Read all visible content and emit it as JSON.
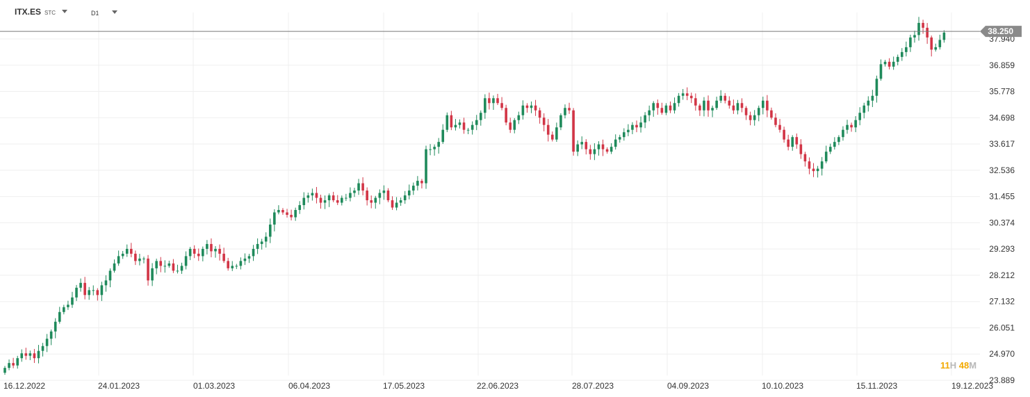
{
  "toolbar": {
    "symbol": "ITX.ES",
    "symbol_suffix": "STC",
    "timeframe": "D1"
  },
  "countdown": {
    "hours": "11",
    "hours_unit": "H",
    "minutes": "48",
    "minutes_unit": "M"
  },
  "colors": {
    "up": "#1f8a5b",
    "down": "#d23546",
    "grid": "#efefef",
    "price_line": "#777777",
    "price_tag_bg": "#8a8a8a",
    "axis_text": "#333333",
    "countdown_num": "#f2a900",
    "countdown_unit": "#b8b8b8"
  },
  "chart_data": {
    "type": "candlestick",
    "symbol": "ITX.ES",
    "timeframe": "D1",
    "y_ticks": [
      "37.940",
      "36.859",
      "35.778",
      "34.698",
      "33.617",
      "32.536",
      "31.455",
      "30.374",
      "29.293",
      "28.212",
      "27.132",
      "26.051",
      "24.970",
      "23.889"
    ],
    "ylim": [
      23.889,
      38.8
    ],
    "x_ticks": [
      "16.12.2022",
      "24.01.2023",
      "01.03.2023",
      "06.04.2023",
      "17.05.2023",
      "22.06.2023",
      "28.07.2023",
      "04.09.2023",
      "10.10.2023",
      "15.11.2023",
      "19.12.2023"
    ],
    "last_price": 38.25,
    "last_price_label": "38.250",
    "grid": true,
    "close_series": [
      24.4,
      24.6,
      24.5,
      24.8,
      25.0,
      24.9,
      25.0,
      24.8,
      25.1,
      25.3,
      25.6,
      25.9,
      26.3,
      26.7,
      26.9,
      27.0,
      27.3,
      27.7,
      27.9,
      27.4,
      27.6,
      27.6,
      27.4,
      27.8,
      28.0,
      28.4,
      28.7,
      29.0,
      29.1,
      29.3,
      29.1,
      28.8,
      28.9,
      28.9,
      28.0,
      28.5,
      28.8,
      28.6,
      28.6,
      28.7,
      28.4,
      28.4,
      28.6,
      29.0,
      29.3,
      29.1,
      29.0,
      29.3,
      29.5,
      29.2,
      29.3,
      29.1,
      28.8,
      28.5,
      28.6,
      28.6,
      28.8,
      28.9,
      29.0,
      29.3,
      29.5,
      29.6,
      29.8,
      30.3,
      30.8,
      30.9,
      30.8,
      30.7,
      30.6,
      30.9,
      31.1,
      31.4,
      31.5,
      31.6,
      31.4,
      31.2,
      31.3,
      31.5,
      31.3,
      31.2,
      31.4,
      31.4,
      31.6,
      31.7,
      32.0,
      31.7,
      31.3,
      31.2,
      31.4,
      31.6,
      31.7,
      31.3,
      31.0,
      31.2,
      31.3,
      31.5,
      31.7,
      31.9,
      32.1,
      32.0,
      33.4,
      33.4,
      33.5,
      33.7,
      34.2,
      34.8,
      34.3,
      34.4,
      34.5,
      34.2,
      34.2,
      34.4,
      34.6,
      34.9,
      35.5,
      35.3,
      35.5,
      35.3,
      35.1,
      34.5,
      34.2,
      34.6,
      34.8,
      35.2,
      35.1,
      35.2,
      35.0,
      34.7,
      34.4,
      34.0,
      33.8,
      34.3,
      34.8,
      35.1,
      35.0,
      33.3,
      33.6,
      33.7,
      33.4,
      33.2,
      33.4,
      33.6,
      33.4,
      33.3,
      33.5,
      33.8,
      33.9,
      34.1,
      34.2,
      34.4,
      34.3,
      34.5,
      34.8,
      35.0,
      35.3,
      35.1,
      34.9,
      35.2,
      35.0,
      35.3,
      35.6,
      35.7,
      35.6,
      35.5,
      35.2,
      35.0,
      35.4,
      35.0,
      35.1,
      35.4,
      35.6,
      35.4,
      35.2,
      35.0,
      35.3,
      35.1,
      34.8,
      34.6,
      34.8,
      35.1,
      35.4,
      35.0,
      34.7,
      34.4,
      34.2,
      33.8,
      33.5,
      33.9,
      33.6,
      33.2,
      32.9,
      32.6,
      32.5,
      32.6,
      32.9,
      33.3,
      33.5,
      33.7,
      33.9,
      34.2,
      34.4,
      34.3,
      34.6,
      34.9,
      35.2,
      35.4,
      35.6,
      36.3,
      36.9,
      37.0,
      36.8,
      37.0,
      37.2,
      37.4,
      37.6,
      38.0,
      38.1,
      38.6,
      38.4,
      38.0,
      37.5,
      37.6,
      37.9,
      38.2
    ]
  }
}
